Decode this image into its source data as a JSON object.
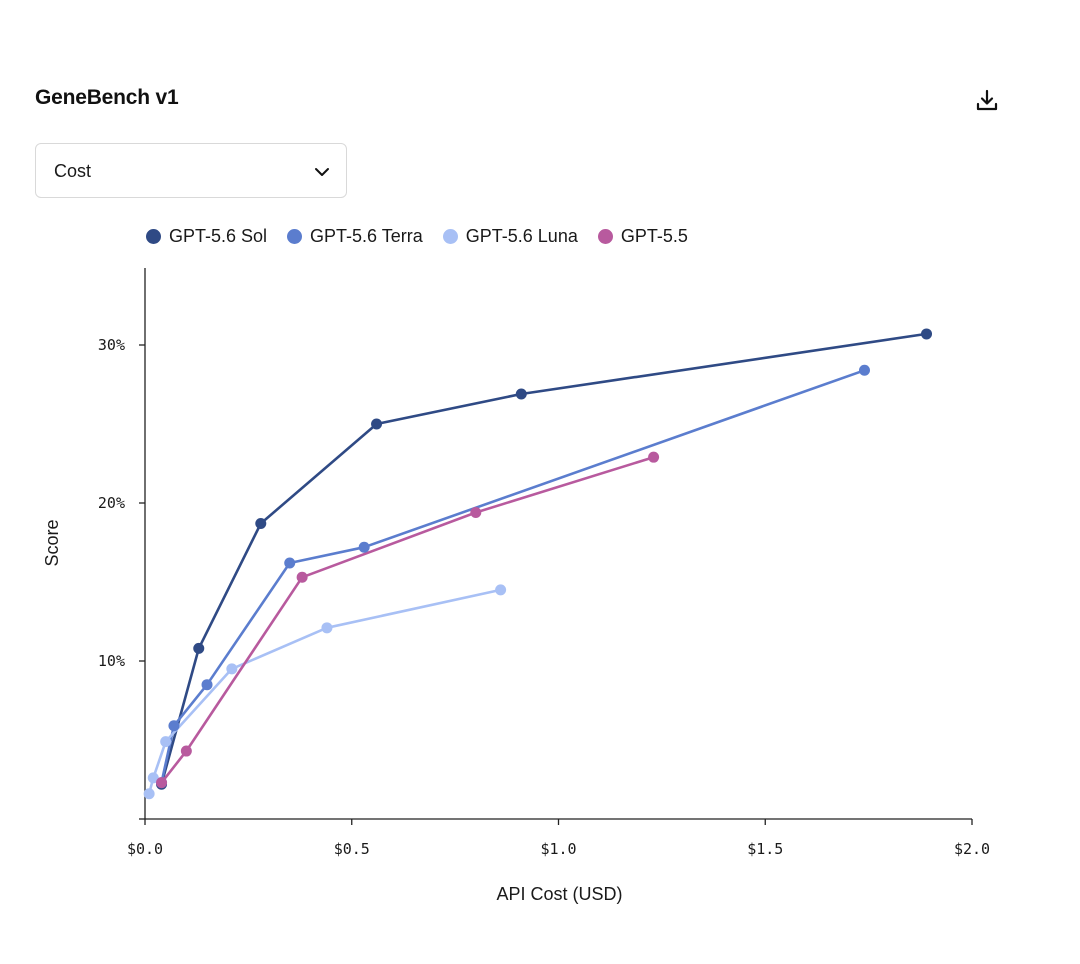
{
  "header": {
    "title": "GeneBench v1",
    "download_icon": "download-icon"
  },
  "metric_select": {
    "selected": "Cost",
    "icon": "chevron-down-icon"
  },
  "chart_data": {
    "type": "line",
    "title": "GeneBench v1",
    "xlabel": "API Cost (USD)",
    "ylabel": "Score",
    "xlim": [
      0,
      2.0
    ],
    "ylim": [
      0,
      35
    ],
    "xticks": [
      {
        "value": 0.0,
        "label": "$0.0"
      },
      {
        "value": 0.5,
        "label": "$0.5"
      },
      {
        "value": 1.0,
        "label": "$1.0"
      },
      {
        "value": 1.5,
        "label": "$1.5"
      },
      {
        "value": 2.0,
        "label": "$2.0"
      }
    ],
    "yticks": [
      {
        "value": 10,
        "label": "10%"
      },
      {
        "value": 20,
        "label": "20%"
      },
      {
        "value": 30,
        "label": "30%"
      }
    ],
    "legend_position": "top-left",
    "grid": false,
    "series": [
      {
        "name": "GPT-5.6 Sol",
        "color": "#2f4a85",
        "points": [
          {
            "x": 0.04,
            "y": 2.2
          },
          {
            "x": 0.13,
            "y": 10.8
          },
          {
            "x": 0.28,
            "y": 18.7
          },
          {
            "x": 0.56,
            "y": 25.0
          },
          {
            "x": 0.91,
            "y": 26.9
          },
          {
            "x": 1.89,
            "y": 30.7
          }
        ]
      },
      {
        "name": "GPT-5.6 Terra",
        "color": "#5b7dce",
        "points": [
          {
            "x": 0.04,
            "y": 2.3
          },
          {
            "x": 0.07,
            "y": 5.9
          },
          {
            "x": 0.15,
            "y": 8.5
          },
          {
            "x": 0.35,
            "y": 16.2
          },
          {
            "x": 0.53,
            "y": 17.2
          },
          {
            "x": 1.74,
            "y": 28.4
          }
        ]
      },
      {
        "name": "GPT-5.6 Luna",
        "color": "#a8c0f5",
        "points": [
          {
            "x": 0.01,
            "y": 1.6
          },
          {
            "x": 0.02,
            "y": 2.6
          },
          {
            "x": 0.05,
            "y": 4.9
          },
          {
            "x": 0.21,
            "y": 9.5
          },
          {
            "x": 0.44,
            "y": 12.1
          },
          {
            "x": 0.86,
            "y": 14.5
          }
        ]
      },
      {
        "name": "GPT-5.5",
        "color": "#b85a9e",
        "points": [
          {
            "x": 0.04,
            "y": 2.3
          },
          {
            "x": 0.1,
            "y": 4.3
          },
          {
            "x": 0.38,
            "y": 15.3
          },
          {
            "x": 0.8,
            "y": 19.4
          },
          {
            "x": 1.23,
            "y": 22.9
          }
        ]
      }
    ]
  }
}
